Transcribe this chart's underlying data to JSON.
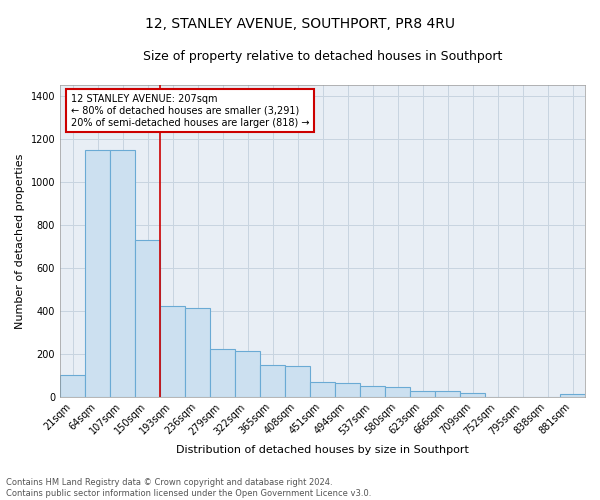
{
  "title": "12, STANLEY AVENUE, SOUTHPORT, PR8 4RU",
  "subtitle": "Size of property relative to detached houses in Southport",
  "xlabel": "Distribution of detached houses by size in Southport",
  "ylabel": "Number of detached properties",
  "categories": [
    "21sqm",
    "64sqm",
    "107sqm",
    "150sqm",
    "193sqm",
    "236sqm",
    "279sqm",
    "322sqm",
    "365sqm",
    "408sqm",
    "451sqm",
    "494sqm",
    "537sqm",
    "580sqm",
    "623sqm",
    "666sqm",
    "709sqm",
    "752sqm",
    "795sqm",
    "838sqm",
    "881sqm"
  ],
  "values": [
    100,
    1150,
    1150,
    730,
    420,
    415,
    220,
    215,
    150,
    145,
    70,
    62,
    48,
    45,
    28,
    25,
    20,
    0,
    0,
    0,
    15
  ],
  "bar_color": "#cce0f0",
  "bar_edge_color": "#6aaad4",
  "red_line_x": 3.5,
  "annotation_line1": "12 STANLEY AVENUE: 207sqm",
  "annotation_line2": "← 80% of detached houses are smaller (3,291)",
  "annotation_line3": "20% of semi-detached houses are larger (818) →",
  "annotation_box_facecolor": "#ffffff",
  "annotation_box_edgecolor": "#cc0000",
  "ylim": [
    0,
    1450
  ],
  "yticks": [
    0,
    200,
    400,
    600,
    800,
    1000,
    1200,
    1400
  ],
  "footer_line1": "Contains HM Land Registry data © Crown copyright and database right 2024.",
  "footer_line2": "Contains public sector information licensed under the Open Government Licence v3.0.",
  "bg_color": "#ffffff",
  "plot_bg_color": "#e8eef5",
  "grid_color": "#c8d4e0",
  "title_fontsize": 10,
  "subtitle_fontsize": 9,
  "ylabel_fontsize": 8,
  "xlabel_fontsize": 8,
  "tick_fontsize": 7,
  "annotation_fontsize": 7,
  "footer_fontsize": 6
}
